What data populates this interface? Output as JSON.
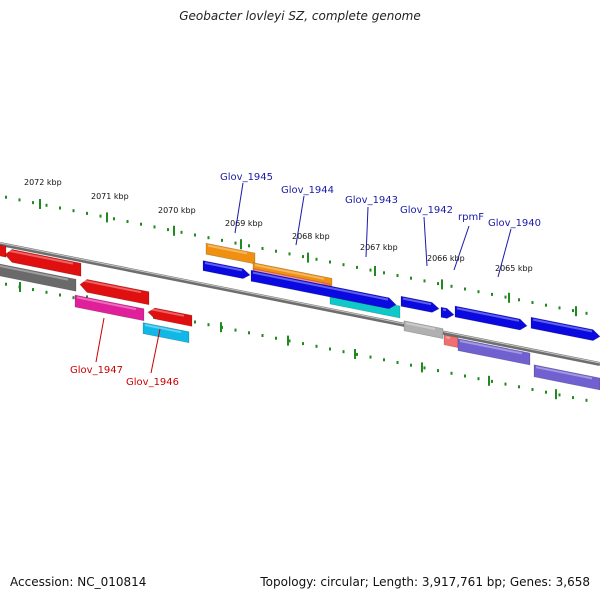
{
  "title": "Geobacter lovleyi SZ, complete genome",
  "footer": {
    "accession": "Accession: NC_010814",
    "summary": "Topology: circular; Length: 3,917,761 bp; Genes: 3,658"
  },
  "kbp_labels": [
    "2072 kbp",
    "2071 kbp",
    "2070 kbp",
    "2069 kbp",
    "2068 kbp",
    "2067 kbp",
    "2066 kbp",
    "2065 kbp"
  ],
  "gene_labels_top": [
    "Glov_1945",
    "Glov_1944",
    "Glov_1943",
    "Glov_1942",
    "rpmF",
    "Glov_1940"
  ],
  "gene_labels_bottom": [
    "Glov_1947",
    "Glov_1946"
  ],
  "colors": {
    "backbone": "#7a7a7a",
    "tick": "#1f8a1f",
    "label_blue": "#1a1aa8",
    "label_red": "#cc0000"
  }
}
